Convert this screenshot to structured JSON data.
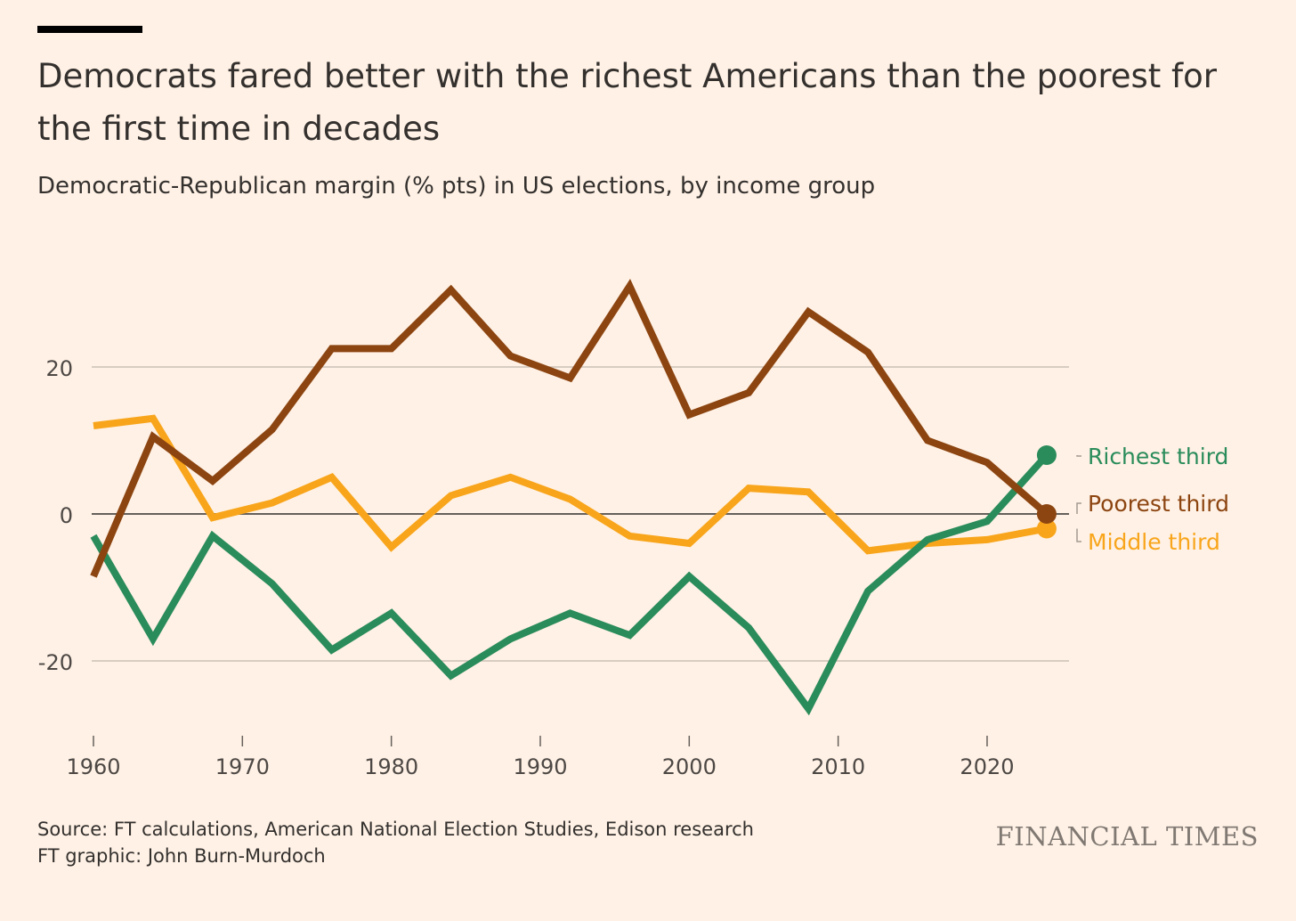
{
  "title": "Democrats fared better with the richest Americans than the poorest for the first time in decades",
  "subtitle": "Democratic-Republican margin (% pts) in US elections, by income group",
  "source": "Source: FT calculations, American National Election Studies, Edison research",
  "credit": "FT graphic: John Burn-Murdoch",
  "brand": "FINANCIAL TIMES",
  "chart_data": {
    "type": "line",
    "title": "Democrats fared better with the richest Americans than the poorest for the first time in decades",
    "subtitle": "Democratic-Republican margin (% pts) in US elections, by income group",
    "xlabel": "",
    "ylabel": "",
    "x": [
      1960,
      1964,
      1968,
      1972,
      1976,
      1980,
      1984,
      1988,
      1992,
      1996,
      2000,
      2004,
      2008,
      2012,
      2016,
      2020,
      2024
    ],
    "xlim": [
      1960,
      2025.5
    ],
    "ylim": [
      -30,
      36
    ],
    "xticks": [
      1960,
      1970,
      1980,
      1990,
      2000,
      2010,
      2020
    ],
    "yticks": [
      -20,
      0,
      20
    ],
    "ytick_labels": [
      "-20",
      "0",
      "20"
    ],
    "grid": true,
    "zero_line": true,
    "legend": "direct labels at line ends (right)",
    "series": [
      {
        "name": "Richest third",
        "color": "#2a8c5a",
        "values": [
          -3,
          -17,
          -3,
          -9.5,
          -18.5,
          -13.5,
          -22,
          -17,
          -13.5,
          -16.5,
          -8.5,
          -15.5,
          -26.5,
          -10.5,
          -3.5,
          -1,
          8
        ]
      },
      {
        "name": "Poorest third",
        "color": "#8c4511",
        "values": [
          -8.5,
          10.5,
          4.5,
          11.5,
          22.5,
          22.5,
          30.5,
          21.5,
          18.5,
          31,
          13.5,
          16.5,
          27.5,
          22,
          10,
          7,
          0
        ]
      },
      {
        "name": "Middle third",
        "color": "#f8a51b",
        "values": [
          12,
          13,
          -0.5,
          1.5,
          5,
          -4.5,
          2.5,
          5,
          2,
          -3,
          -4,
          3.5,
          3,
          -5,
          -4,
          -3.5,
          -2
        ]
      }
    ]
  }
}
